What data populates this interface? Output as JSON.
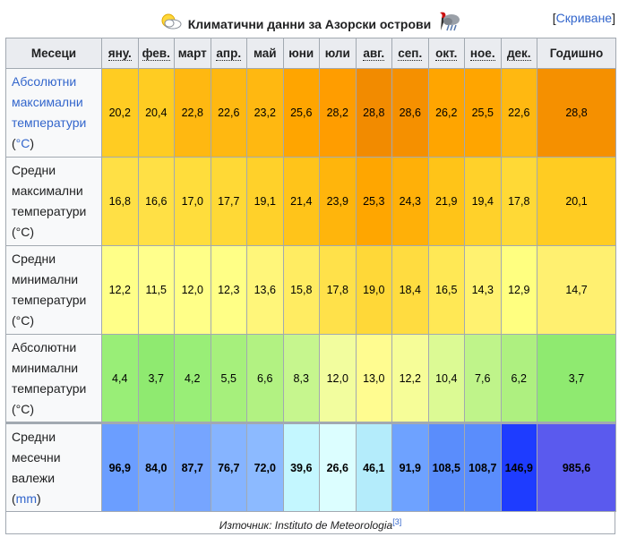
{
  "caption": {
    "title": "Климатични данни за Азорски острови",
    "hide_label": "Скриване",
    "left_icon": "sun-cloud-icon",
    "right_icon": "storm-icon"
  },
  "header": {
    "first": "Месеци",
    "months": [
      "яну.",
      "фев.",
      "март",
      "апр.",
      "май",
      "юни",
      "юли",
      "авг.",
      "сеп.",
      "окт.",
      "ное.",
      "дек."
    ],
    "abbreviated": [
      true,
      true,
      false,
      true,
      false,
      false,
      false,
      true,
      true,
      true,
      true,
      true
    ],
    "annual": "Годишно"
  },
  "rows": [
    {
      "label_lines": [
        "Абсолютни",
        "максимални",
        "температури",
        "(°C)"
      ],
      "link_lines": [
        0,
        1,
        2
      ],
      "unit_link": true,
      "values": [
        "20,2",
        "20,4",
        "22,8",
        "22,6",
        "23,2",
        "25,6",
        "28,2",
        "28,8",
        "28,6",
        "26,2",
        "25,5",
        "22,6"
      ],
      "annual": "28,8",
      "colors": [
        "#ffcc22",
        "#ffcc22",
        "#ffb811",
        "#ffb811",
        "#ffb811",
        "#ffa500",
        "#ff9d00",
        "#f28b00",
        "#f59000",
        "#ffa500",
        "#ffa500",
        "#ffb811"
      ],
      "annual_color": "#f59000"
    },
    {
      "label_lines": [
        "Средни",
        "максимални",
        "температури",
        "(°C)"
      ],
      "link_lines": [],
      "unit_link": false,
      "values": [
        "16,8",
        "16,6",
        "17,0",
        "17,7",
        "19,1",
        "21,4",
        "23,9",
        "25,3",
        "24,3",
        "21,9",
        "19,4",
        "17,8"
      ],
      "annual": "20,1",
      "colors": [
        "#ffe045",
        "#ffe045",
        "#ffdd3c",
        "#ffd936",
        "#ffd12a",
        "#ffc41a",
        "#ffb50c",
        "#ffa600",
        "#ffb008",
        "#ffc418",
        "#ffd12a",
        "#ffd936"
      ],
      "annual_color": "#ffcc22"
    },
    {
      "label_lines": [
        "Средни",
        "минимални",
        "температури",
        "(°C)"
      ],
      "link_lines": [],
      "unit_link": false,
      "values": [
        "12,2",
        "11,5",
        "12,0",
        "12,3",
        "13,6",
        "15,8",
        "17,8",
        "19,0",
        "18,4",
        "16,5",
        "14,3",
        "12,9"
      ],
      "annual": "14,7",
      "colors": [
        "#ffff88",
        "#ffff8c",
        "#ffff88",
        "#ffff86",
        "#fff67a",
        "#ffec62",
        "#ffe14a",
        "#ffd838",
        "#ffdc40",
        "#ffe855",
        "#fff270",
        "#ffff80"
      ],
      "annual_color": "#fff070"
    },
    {
      "label_lines": [
        "Абсолютни",
        "минимални",
        "температури",
        "(°C)"
      ],
      "link_lines": [],
      "unit_link": false,
      "values": [
        "4,4",
        "3,7",
        "4,2",
        "5,5",
        "6,6",
        "8,3",
        "12,0",
        "13,0",
        "12,2",
        "10,4",
        "7,6",
        "6,2"
      ],
      "annual": "3,7",
      "colors": [
        "#99ee77",
        "#8fea70",
        "#99ee77",
        "#a6f07c",
        "#b2f282",
        "#c6f68e",
        "#f2fd9e",
        "#fffc90",
        "#f6fd98",
        "#dcfa94",
        "#bff48a",
        "#aef080"
      ],
      "annual_color": "#8fea70"
    },
    {
      "label_lines": [
        "Средни",
        "месечни",
        "валежи",
        "(mm)"
      ],
      "link_lines": [],
      "unit_link": true,
      "precip": true,
      "values": [
        "96,9",
        "84,0",
        "87,7",
        "76,7",
        "72,0",
        "39,6",
        "26,6",
        "46,1",
        "91,9",
        "108,5",
        "108,7",
        "146,9"
      ],
      "annual": "985,6",
      "colors": [
        "#6b9eff",
        "#7aa9ff",
        "#76a5ff",
        "#86b4ff",
        "#8cbaff",
        "#c4f7ff",
        "#dcfeff",
        "#b4ecfb",
        "#6ea2ff",
        "#5a8dfc",
        "#5a8dfc",
        "#1e3cff"
      ],
      "annual_color": "#5a5aee"
    }
  ],
  "source": {
    "text": "Източник: Instituto de Meteorologia",
    "ref": "[3]"
  }
}
